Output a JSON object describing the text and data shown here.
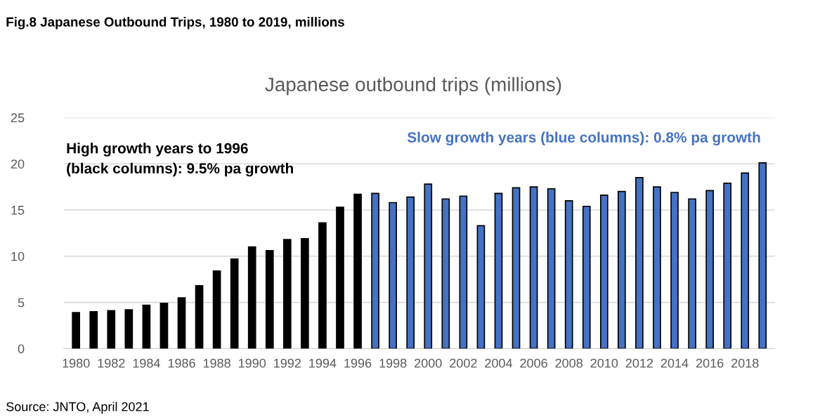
{
  "chart_data": {
    "type": "bar",
    "title": "Fig.8 Japanese Outbound Trips, 1980 to 2019, millions",
    "subtitle": "Japanese outbound trips (millions)",
    "categories": [
      "1980",
      null,
      "1982",
      null,
      "1984",
      null,
      "1986",
      null,
      "1988",
      null,
      "1990",
      null,
      "1992",
      null,
      "1994",
      null,
      "1996",
      null,
      "1998",
      null,
      "2000",
      null,
      "2002",
      null,
      "2004",
      null,
      "2006",
      null,
      "2008",
      null,
      "2010",
      null,
      "2012",
      null,
      "2014",
      null,
      "2016",
      null,
      "2018",
      null
    ],
    "values": [
      3.9,
      4.0,
      4.1,
      4.2,
      4.7,
      4.9,
      5.5,
      6.8,
      8.4,
      9.7,
      11.0,
      10.6,
      11.8,
      11.9,
      13.6,
      15.3,
      16.7,
      16.8,
      15.8,
      16.4,
      17.8,
      16.2,
      16.5,
      13.3,
      16.8,
      17.4,
      17.5,
      17.3,
      16.0,
      15.4,
      16.6,
      17.0,
      18.5,
      17.5,
      16.9,
      16.2,
      17.1,
      17.9,
      19.0,
      20.1
    ],
    "colors": [
      "#000000",
      "#000000",
      "#000000",
      "#000000",
      "#000000",
      "#000000",
      "#000000",
      "#000000",
      "#000000",
      "#000000",
      "#000000",
      "#000000",
      "#000000",
      "#000000",
      "#000000",
      "#000000",
      "#000000",
      "#4472c4",
      "#4472c4",
      "#4472c4",
      "#4472c4",
      "#4472c4",
      "#4472c4",
      "#4472c4",
      "#4472c4",
      "#4472c4",
      "#4472c4",
      "#4472c4",
      "#4472c4",
      "#4472c4",
      "#4472c4",
      "#4472c4",
      "#4472c4",
      "#4472c4",
      "#4472c4",
      "#4472c4",
      "#4472c4",
      "#4472c4",
      "#4472c4",
      "#4472c4"
    ],
    "ylim": [
      0,
      25
    ],
    "yticks": [
      0,
      5,
      10,
      15,
      20,
      25
    ],
    "grid": "y",
    "annotations": [
      "High growth years to 1996\n(black columns): 9.5% pa growth",
      "Slow growth years (blue columns): 0.8% pa growth",
      "Source: JNTO, April 2021"
    ]
  }
}
